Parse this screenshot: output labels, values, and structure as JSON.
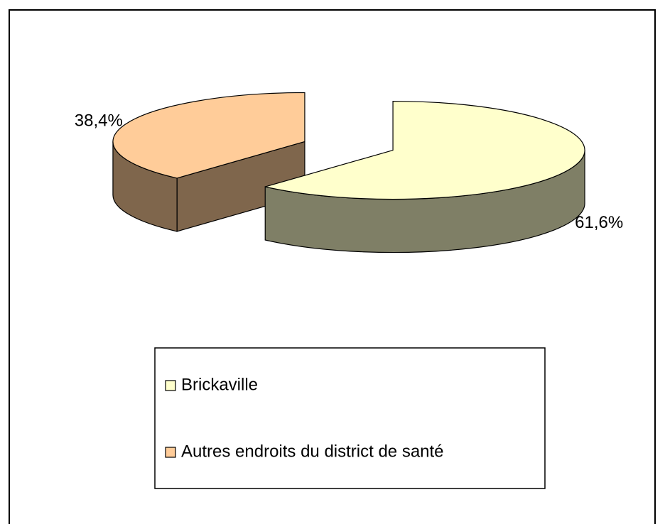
{
  "chart_data": {
    "type": "pie",
    "categories": [
      "Brickaville",
      "Autres endroits du district de santé"
    ],
    "values": [
      61.6,
      38.4
    ],
    "value_labels": [
      "61,6%",
      "38,4%"
    ],
    "colors": [
      "#FFFFCC",
      "#FFCC99"
    ],
    "legend": "bottom"
  }
}
